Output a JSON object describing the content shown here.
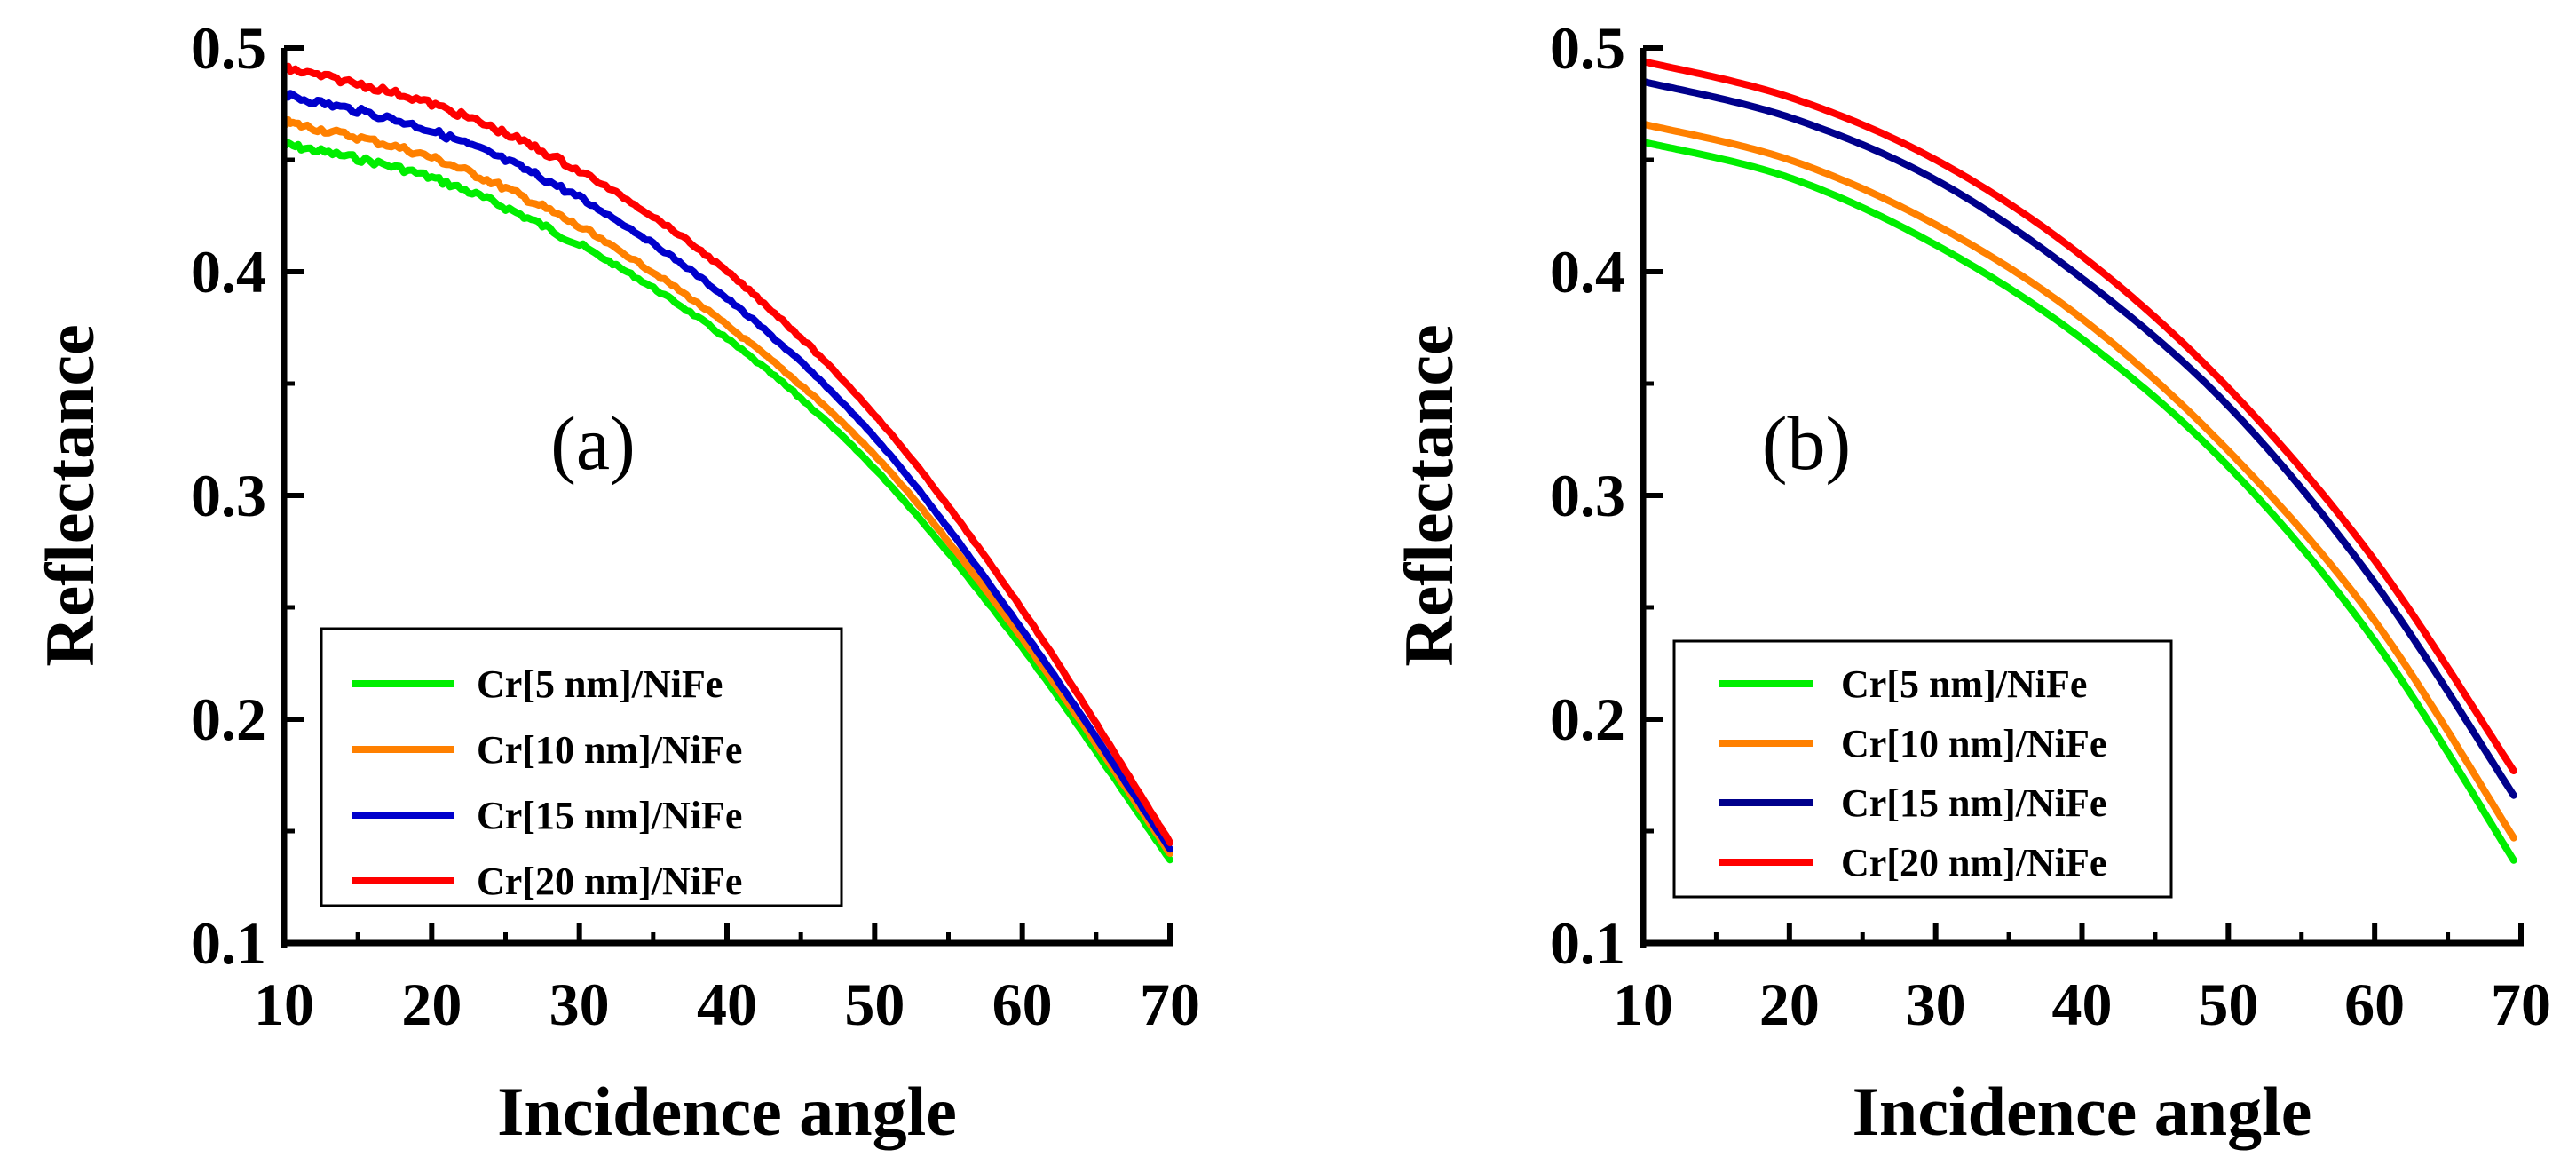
{
  "chart_data": [
    {
      "type": "line",
      "panel": "(a)",
      "title": "",
      "xlabel": "Incidence angle",
      "ylabel": "Reflectance",
      "xlim": [
        10,
        70
      ],
      "ylim": [
        0.1,
        0.5
      ],
      "xticks": [
        10,
        20,
        30,
        40,
        50,
        60,
        70
      ],
      "yticks": [
        0.1,
        0.2,
        0.3,
        0.4,
        0.5
      ],
      "xtick_labels": [
        "10",
        "20",
        "30",
        "40",
        "50",
        "60",
        "70"
      ],
      "ytick_labels": [
        "0.1",
        "0.2",
        "0.3",
        "0.4",
        "0.5"
      ],
      "legend_position": "bottom-center",
      "noisy": true,
      "x": [
        10,
        20,
        30,
        40,
        50,
        60,
        70
      ],
      "series": [
        {
          "name": "Cr[5 nm]/NiFe",
          "color": "#00ee00",
          "values": [
            0.457,
            0.442,
            0.412,
            0.37,
            0.312,
            0.232,
            0.137
          ]
        },
        {
          "name": "Cr[10 nm]/NiFe",
          "color": "#ff8000",
          "values": [
            0.467,
            0.451,
            0.42,
            0.376,
            0.318,
            0.236,
            0.14
          ]
        },
        {
          "name": "Cr[15 nm]/NiFe",
          "color": "#0000cc",
          "values": [
            0.479,
            0.463,
            0.433,
            0.388,
            0.326,
            0.24,
            0.142
          ]
        },
        {
          "name": "Cr[20 nm]/NiFe",
          "color": "#ff0000",
          "values": [
            0.491,
            0.475,
            0.445,
            0.4,
            0.336,
            0.249,
            0.145
          ]
        }
      ]
    },
    {
      "type": "line",
      "panel": "(b)",
      "title": "",
      "xlabel": "Incidence angle",
      "ylabel": "Reflectance",
      "xlim": [
        10,
        70
      ],
      "ylim": [
        0.1,
        0.5
      ],
      "xticks": [
        10,
        20,
        30,
        40,
        50,
        60,
        70
      ],
      "yticks": [
        0.1,
        0.2,
        0.3,
        0.4,
        0.5
      ],
      "xtick_labels": [
        "10",
        "20",
        "30",
        "40",
        "50",
        "60",
        "70"
      ],
      "ytick_labels": [
        "0.1",
        "0.2",
        "0.3",
        "0.4",
        "0.5"
      ],
      "legend_position": "bottom-center",
      "noisy": false,
      "x": [
        10,
        20,
        30,
        40,
        50,
        60,
        69.5
      ],
      "series": [
        {
          "name": "Cr[5 nm]/NiFe",
          "color": "#00ee00",
          "values": [
            0.458,
            0.442,
            0.412,
            0.37,
            0.313,
            0.235,
            0.137
          ]
        },
        {
          "name": "Cr[10 nm]/NiFe",
          "color": "#ff8000",
          "values": [
            0.466,
            0.45,
            0.421,
            0.379,
            0.32,
            0.244,
            0.147
          ]
        },
        {
          "name": "Cr[15 nm]/NiFe",
          "color": "#00008b",
          "values": [
            0.485,
            0.469,
            0.441,
            0.397,
            0.34,
            0.261,
            0.166
          ]
        },
        {
          "name": "Cr[20 nm]/NiFe",
          "color": "#ff0000",
          "values": [
            0.494,
            0.478,
            0.45,
            0.407,
            0.348,
            0.271,
            0.177
          ]
        }
      ]
    }
  ]
}
